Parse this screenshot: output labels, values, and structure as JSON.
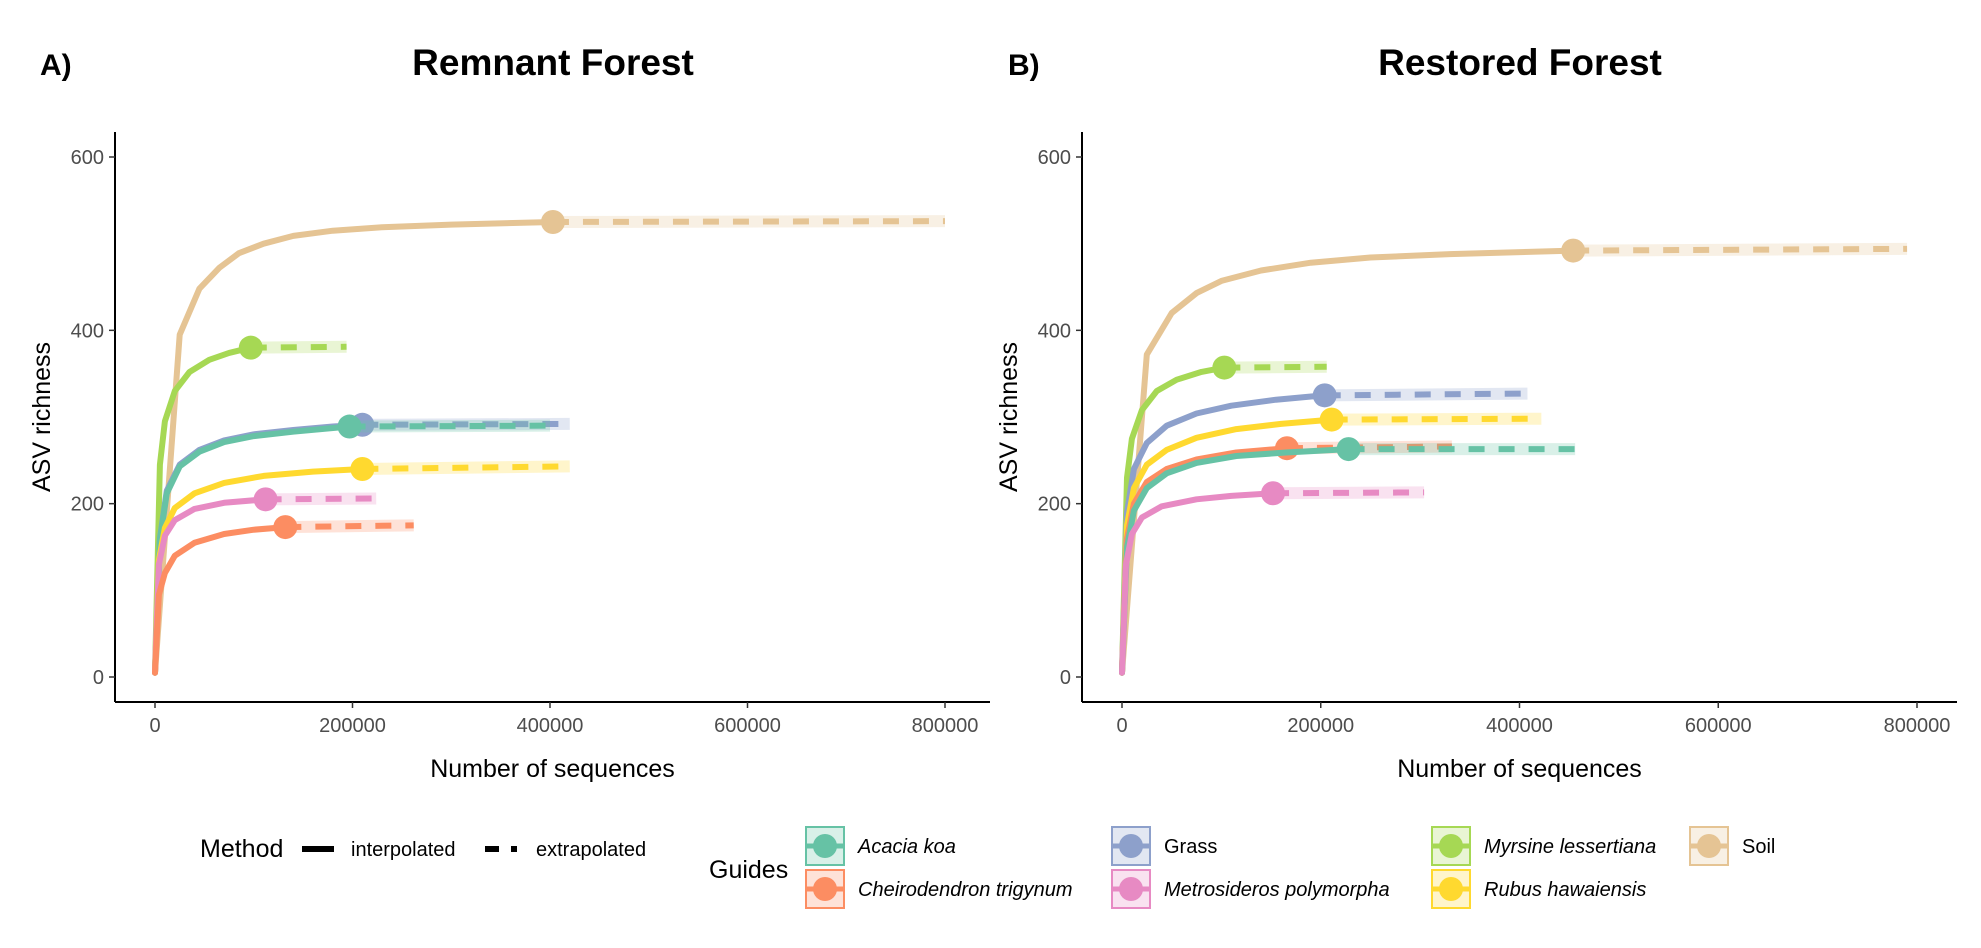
{
  "chart_data": [
    {
      "type": "line",
      "tag": "A)",
      "title": "Remnant Forest",
      "xlabel": "Number of sequences",
      "ylabel": "ASV richness",
      "xlim": [
        0,
        800000
      ],
      "ylim": [
        0,
        600
      ],
      "xticks": [
        "0",
        "200000",
        "400000",
        "600000",
        "800000"
      ],
      "yticks": [
        "0",
        "200",
        "400",
        "600"
      ],
      "grid": false,
      "series": [
        {
          "name": "Soil",
          "observed": [
            403000,
            525
          ],
          "asymptote": 526,
          "x_end": 800000,
          "points": [
            [
              0,
              5
            ],
            [
              25000,
              395
            ],
            [
              45000,
              448
            ],
            [
              65000,
              472
            ],
            [
              85000,
              489
            ],
            [
              110000,
              500
            ],
            [
              140000,
              509
            ],
            [
              180000,
              515
            ],
            [
              230000,
              519
            ],
            [
              300000,
              522
            ],
            [
              403000,
              525
            ]
          ]
        },
        {
          "name": "Myrsine lessertiana",
          "observed": [
            97000,
            380
          ],
          "asymptote": 381,
          "x_end": 194000,
          "points": [
            [
              0,
              5
            ],
            [
              5000,
              245
            ],
            [
              10000,
              295
            ],
            [
              20000,
              330
            ],
            [
              35000,
              352
            ],
            [
              55000,
              366
            ],
            [
              75000,
              374
            ],
            [
              97000,
              380
            ]
          ]
        },
        {
          "name": "Grass",
          "observed": [
            210000,
            291
          ],
          "asymptote": 292,
          "x_end": 420000,
          "points": [
            [
              0,
              5
            ],
            [
              5000,
              160
            ],
            [
              12000,
              215
            ],
            [
              25000,
              245
            ],
            [
              45000,
              262
            ],
            [
              70000,
              273
            ],
            [
              100000,
              280
            ],
            [
              140000,
              285
            ],
            [
              180000,
              289
            ],
            [
              210000,
              291
            ]
          ]
        },
        {
          "name": "Acacia koa",
          "observed": [
            197000,
            289
          ],
          "asymptote": 290,
          "x_end": 400000,
          "points": [
            [
              0,
              5
            ],
            [
              5000,
              158
            ],
            [
              12000,
              212
            ],
            [
              25000,
              243
            ],
            [
              45000,
              260
            ],
            [
              70000,
              271
            ],
            [
              100000,
              278
            ],
            [
              140000,
              283
            ],
            [
              197000,
              289
            ]
          ]
        },
        {
          "name": "Rubus hawaiensis",
          "observed": [
            210000,
            240
          ],
          "asymptote": 243,
          "x_end": 420000,
          "points": [
            [
              0,
              5
            ],
            [
              4000,
              135
            ],
            [
              10000,
              172
            ],
            [
              20000,
              195
            ],
            [
              40000,
              212
            ],
            [
              70000,
              224
            ],
            [
              110000,
              232
            ],
            [
              160000,
              237
            ],
            [
              210000,
              240
            ]
          ]
        },
        {
          "name": "Metrosideros polymorpha",
          "observed": [
            112000,
            205
          ],
          "asymptote": 206,
          "x_end": 224000,
          "points": [
            [
              0,
              5
            ],
            [
              4000,
              130
            ],
            [
              10000,
              163
            ],
            [
              20000,
              181
            ],
            [
              40000,
              194
            ],
            [
              70000,
              201
            ],
            [
              112000,
              205
            ]
          ]
        },
        {
          "name": "Cheirodendron trigynum",
          "observed": [
            132000,
            173
          ],
          "asymptote": 175,
          "x_end": 262000,
          "points": [
            [
              0,
              5
            ],
            [
              4000,
              95
            ],
            [
              10000,
              120
            ],
            [
              20000,
              140
            ],
            [
              40000,
              155
            ],
            [
              70000,
              165
            ],
            [
              100000,
              170
            ],
            [
              132000,
              173
            ]
          ]
        }
      ]
    },
    {
      "type": "line",
      "tag": "B)",
      "title": "Restored Forest",
      "xlabel": "Number of sequences",
      "ylabel": "ASV richness",
      "xlim": [
        0,
        800000
      ],
      "ylim": [
        0,
        600
      ],
      "xticks": [
        "0",
        "200000",
        "400000",
        "600000",
        "800000"
      ],
      "yticks": [
        "0",
        "200",
        "400",
        "600"
      ],
      "grid": false,
      "series": [
        {
          "name": "Soil",
          "observed": [
            454000,
            492
          ],
          "asymptote": 494,
          "x_end": 790000,
          "points": [
            [
              0,
              5
            ],
            [
              25000,
              372
            ],
            [
              50000,
              420
            ],
            [
              75000,
              443
            ],
            [
              100000,
              457
            ],
            [
              140000,
              469
            ],
            [
              190000,
              478
            ],
            [
              250000,
              484
            ],
            [
              330000,
              488
            ],
            [
              454000,
              492
            ]
          ]
        },
        {
          "name": "Myrsine lessertiana",
          "observed": [
            103000,
            357
          ],
          "asymptote": 358,
          "x_end": 206000,
          "points": [
            [
              0,
              5
            ],
            [
              5000,
              230
            ],
            [
              10000,
              275
            ],
            [
              20000,
              308
            ],
            [
              35000,
              330
            ],
            [
              55000,
              343
            ],
            [
              80000,
              352
            ],
            [
              103000,
              357
            ]
          ]
        },
        {
          "name": "Grass",
          "observed": [
            204000,
            325
          ],
          "asymptote": 327,
          "x_end": 408000,
          "points": [
            [
              0,
              5
            ],
            [
              5000,
              190
            ],
            [
              12000,
              240
            ],
            [
              25000,
              270
            ],
            [
              45000,
              290
            ],
            [
              75000,
              304
            ],
            [
              110000,
              313
            ],
            [
              155000,
              320
            ],
            [
              204000,
              325
            ]
          ]
        },
        {
          "name": "Rubus hawaiensis",
          "observed": [
            211000,
            297
          ],
          "asymptote": 298,
          "x_end": 422000,
          "points": [
            [
              0,
              5
            ],
            [
              5000,
              175
            ],
            [
              12000,
              218
            ],
            [
              25000,
              245
            ],
            [
              45000,
              262
            ],
            [
              75000,
              276
            ],
            [
              115000,
              286
            ],
            [
              160000,
              292
            ],
            [
              211000,
              297
            ]
          ]
        },
        {
          "name": "Cheirodendron trigynum",
          "observed": [
            166000,
            264
          ],
          "asymptote": 266,
          "x_end": 332000,
          "points": [
            [
              0,
              5
            ],
            [
              5000,
              160
            ],
            [
              12000,
              200
            ],
            [
              25000,
              225
            ],
            [
              45000,
              240
            ],
            [
              75000,
              251
            ],
            [
              115000,
              259
            ],
            [
              166000,
              264
            ]
          ]
        },
        {
          "name": "Acacia koa",
          "observed": [
            228000,
            263
          ],
          "asymptote": 263,
          "x_end": 456000,
          "points": [
            [
              0,
              5
            ],
            [
              5000,
              150
            ],
            [
              12000,
              192
            ],
            [
              25000,
              218
            ],
            [
              45000,
              235
            ],
            [
              75000,
              247
            ],
            [
              115000,
              255
            ],
            [
              165000,
              259
            ],
            [
              228000,
              263
            ]
          ]
        },
        {
          "name": "Metrosideros polymorpha",
          "observed": [
            152000,
            212
          ],
          "asymptote": 213,
          "x_end": 304000,
          "points": [
            [
              0,
              5
            ],
            [
              4000,
              130
            ],
            [
              10000,
              165
            ],
            [
              20000,
              184
            ],
            [
              40000,
              197
            ],
            [
              75000,
              205
            ],
            [
              110000,
              209
            ],
            [
              152000,
              212
            ]
          ]
        }
      ]
    }
  ],
  "legend": {
    "method_title": "Method",
    "method_items": [
      "interpolated",
      "extrapolated"
    ],
    "guides_title": "Guides",
    "guides_items": [
      {
        "name": "Acacia koa",
        "italic": true
      },
      {
        "name": "Cheirodendron trigynum",
        "italic": true
      },
      {
        "name": "Grass",
        "italic": false
      },
      {
        "name": "Metrosideros polymorpha",
        "italic": true
      },
      {
        "name": "Myrsine lessertiana",
        "italic": true
      },
      {
        "name": "Rubus hawaiensis",
        "italic": true
      },
      {
        "name": "Soil",
        "italic": false
      }
    ]
  },
  "colors": {
    "Acacia koa": "#66c2a5",
    "Cheirodendron trigynum": "#fc8d62",
    "Grass": "#8da0cb",
    "Metrosideros polymorpha": "#e78ac3",
    "Myrsine lessertiana": "#a6d854",
    "Rubus hawaiensis": "#ffd92f",
    "Soil": "#e5c494"
  }
}
